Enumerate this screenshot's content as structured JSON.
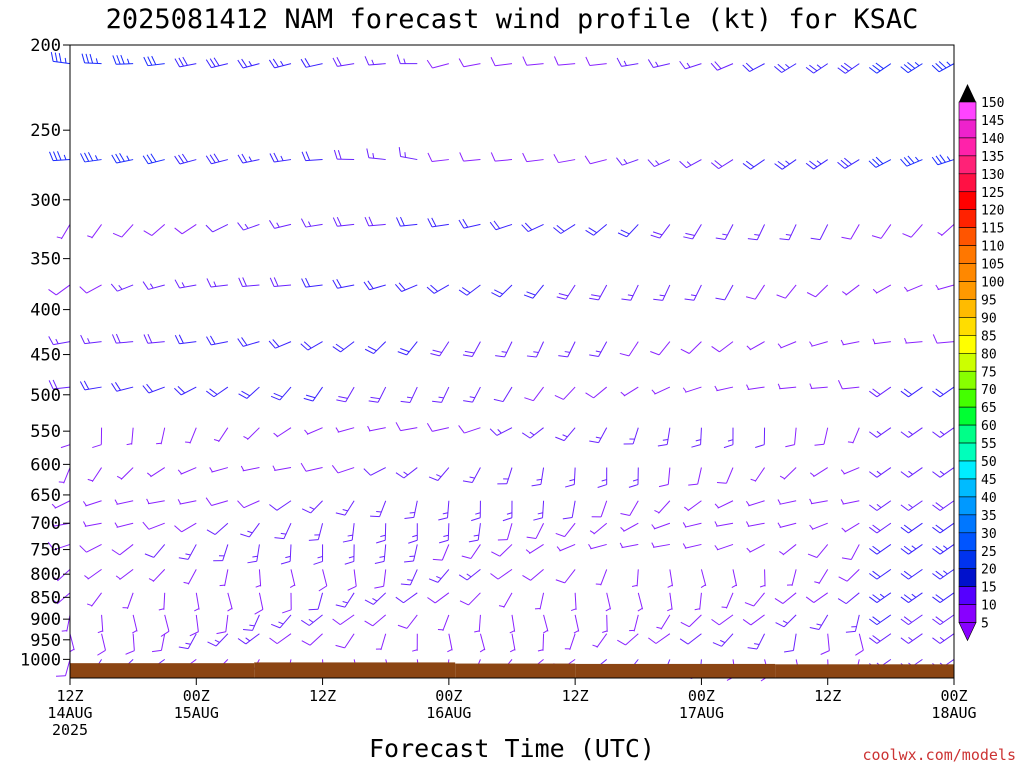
{
  "chart_data": {
    "type": "wind-barb-profile",
    "title": "2025081412 NAM forecast wind profile (kt) for KSAC",
    "xlabel": "Forecast Time (UTC)",
    "ylabel": "",
    "credit": "coolwx.com/models",
    "pressure_levels_hPa": [
      200,
      250,
      300,
      350,
      400,
      450,
      500,
      550,
      600,
      650,
      700,
      750,
      800,
      850,
      900,
      950,
      1000
    ],
    "ylim_hPa": [
      200,
      1050
    ],
    "y_scale": "log",
    "x_ticks": [
      {
        "hour": 0,
        "lines": [
          "12Z",
          "14AUG",
          "2025"
        ]
      },
      {
        "hour": 12,
        "lines": [
          "00Z",
          "15AUG"
        ]
      },
      {
        "hour": 24,
        "lines": [
          "12Z"
        ]
      },
      {
        "hour": 36,
        "lines": [
          "00Z",
          "16AUG"
        ]
      },
      {
        "hour": 48,
        "lines": [
          "12Z"
        ]
      },
      {
        "hour": 60,
        "lines": [
          "00Z",
          "17AUG"
        ]
      },
      {
        "hour": 72,
        "lines": [
          "12Z"
        ]
      },
      {
        "hour": 84,
        "lines": [
          "00Z",
          "18AUG"
        ]
      }
    ],
    "xlim_hours": [
      0,
      84
    ],
    "barb_time_step_hours": 3,
    "barb_levels_hPa": [
      210,
      270,
      320,
      375,
      435,
      490,
      545,
      605,
      660,
      700,
      740,
      790,
      840,
      890,
      935,
      1000
    ],
    "colorbar": {
      "unit": "kt",
      "ticks": [
        150,
        145,
        140,
        135,
        130,
        125,
        120,
        115,
        110,
        105,
        100,
        95,
        90,
        85,
        80,
        75,
        70,
        65,
        60,
        55,
        50,
        45,
        40,
        35,
        30,
        25,
        20,
        15,
        10,
        5
      ],
      "colors": [
        "#000000",
        "#ff44ff",
        "#ee22cc",
        "#ff22aa",
        "#ff2277",
        "#ff1144",
        "#ff0000",
        "#ff2200",
        "#ff5500",
        "#ff7700",
        "#ff8800",
        "#ff9900",
        "#ffbb00",
        "#ffdd00",
        "#ffff00",
        "#ccff00",
        "#88ff00",
        "#44ff00",
        "#00ff33",
        "#00ff88",
        "#00ffbb",
        "#00eeff",
        "#00bbff",
        "#0099ff",
        "#0077ff",
        "#0055ff",
        "#0033ee",
        "#0011cc",
        "#5500ff",
        "#8800ff",
        "#8800ff"
      ]
    },
    "terrain_color": "#8b4513",
    "series": []
  }
}
